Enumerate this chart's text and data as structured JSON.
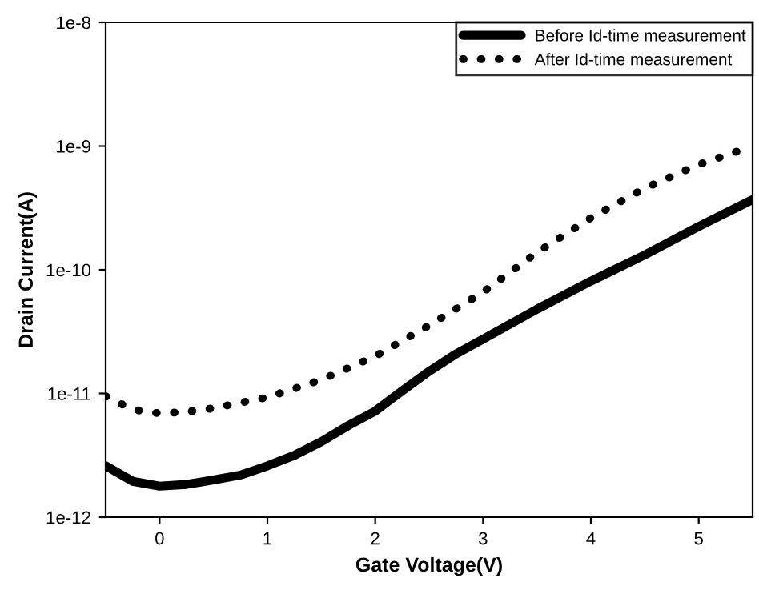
{
  "chart_data": {
    "type": "line",
    "xlabel": "Gate Voltage(V)",
    "ylabel": "Drain Current(A)",
    "log": "y",
    "legend": "top right",
    "grid": false,
    "marker": "none",
    "xlim": [
      -0.5,
      5.5
    ],
    "xticks": [
      0,
      1,
      2,
      3,
      4,
      5
    ],
    "ylim": [
      1e-12,
      1e-08
    ],
    "yticks": [
      {
        "value": 1e-12,
        "label": "1e-12"
      },
      {
        "value": 1e-11,
        "label": "1e-11"
      },
      {
        "value": 1e-10,
        "label": "1e-10"
      },
      {
        "value": 1e-09,
        "label": "1e-9"
      },
      {
        "value": 1e-08,
        "label": "1e-8"
      }
    ],
    "series": [
      {
        "name": "Before Id-time measurement",
        "color": "#000000",
        "line_style": "solid",
        "x": [
          -0.5,
          -0.25,
          0,
          0.25,
          0.5,
          0.75,
          1,
          1.25,
          1.5,
          1.75,
          2,
          2.25,
          2.5,
          2.75,
          3,
          3.5,
          4,
          4.5,
          5,
          5.5
        ],
        "values": [
          2.6e-12,
          1.95e-12,
          1.78e-12,
          1.84e-12,
          2e-12,
          2.19e-12,
          2.6e-12,
          3.16e-12,
          4.07e-12,
          5.5e-12,
          7.2e-12,
          1.05e-11,
          1.51e-11,
          2.09e-11,
          2.75e-11,
          4.8e-11,
          8.1e-11,
          1.32e-10,
          2.24e-10,
          3.7e-10
        ]
      },
      {
        "name": "After Id-time measurement",
        "color": "#000000",
        "line_style": "dotted",
        "x": [
          -0.5,
          -0.25,
          0,
          0.25,
          0.5,
          1,
          1.5,
          2,
          2.5,
          3,
          3.5,
          4,
          4.5,
          5,
          5.5
        ],
        "values": [
          9.5e-12,
          7.4e-12,
          6.9e-12,
          7.1e-12,
          7.6e-12,
          9.3e-12,
          1.29e-11,
          2e-11,
          3.55e-11,
          6.6e-11,
          1.38e-10,
          2.63e-10,
          4.57e-10,
          7.1e-10,
          1e-09
        ]
      }
    ]
  }
}
